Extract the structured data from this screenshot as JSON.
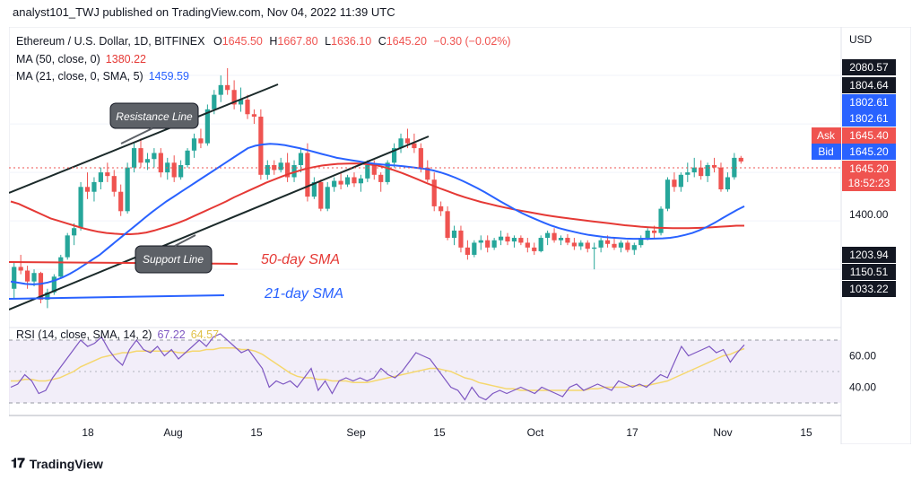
{
  "header": {
    "published_by": "analyst101_TWJ published on TradingView.com, Nov 04, 2022 11:39 UTC"
  },
  "legend": {
    "symbol": "Ethereum / U.S. Dollar, 1D, BITFINEX",
    "o_label": "O",
    "o_value": "1645.50",
    "h_label": "H",
    "h_value": "1667.80",
    "l_label": "L",
    "l_value": "1636.10",
    "c_label": "C",
    "c_value": "1645.20",
    "change": "−0.30 (−0.02%)",
    "ma50": "MA (50, close, 0)",
    "ma50_value": "1380.22",
    "ma21": "MA (21, close, 0, SMA, 5)",
    "ma21_value": "1459.59",
    "rsi": "RSI (14, close, SMA, 14, 2)",
    "rsi_value": "67.22",
    "rsi_ma_value": "64.57"
  },
  "annotations": {
    "resistance": "Resistance Line",
    "support": "Support Line",
    "sma50": "50-day SMA",
    "sma21": "21-day SMA"
  },
  "axis": {
    "currency": "USD",
    "ask_label": "Ask",
    "ask_value": "1645.40",
    "bid_label": "Bid",
    "bid_value": "1645.20",
    "price_tag": "1645.20",
    "countdown": "18:52:23",
    "badges": [
      "2080.57",
      "1804.64",
      "1802.61",
      "1802.61",
      "1203.94",
      "1150.51",
      "1033.22"
    ],
    "tick_1400": "1400.00",
    "rsi_ticks": [
      "60.00",
      "40.00"
    ],
    "x_ticks": [
      "18",
      "Aug",
      "15",
      "Sep",
      "15",
      "Oct",
      "17",
      "Nov",
      "15"
    ]
  },
  "colors": {
    "up": "#26a69a",
    "down": "#ef5350",
    "ma50": "#e53935",
    "ma21": "#2962ff",
    "rsi": "#7e57c2",
    "rsi_ma": "#f5d76e",
    "dark_badge": "#131722",
    "blue_badge": "#2962ff"
  },
  "footer": {
    "brand": "TradingView"
  },
  "chart_data": {
    "type": "candlestick",
    "y_unit": "USD",
    "ylim": [
      960,
      2200
    ],
    "candles": [
      {
        "o": 1120,
        "h": 1230,
        "l": 1080,
        "c": 1210
      },
      {
        "o": 1210,
        "h": 1260,
        "l": 1180,
        "c": 1195
      },
      {
        "o": 1195,
        "h": 1215,
        "l": 1120,
        "c": 1150
      },
      {
        "o": 1150,
        "h": 1200,
        "l": 1130,
        "c": 1185
      },
      {
        "o": 1185,
        "h": 1190,
        "l": 1060,
        "c": 1075
      },
      {
        "o": 1075,
        "h": 1120,
        "l": 1040,
        "c": 1105
      },
      {
        "o": 1105,
        "h": 1180,
        "l": 1095,
        "c": 1170
      },
      {
        "o": 1170,
        "h": 1260,
        "l": 1160,
        "c": 1250
      },
      {
        "o": 1250,
        "h": 1350,
        "l": 1240,
        "c": 1340
      },
      {
        "o": 1340,
        "h": 1390,
        "l": 1300,
        "c": 1370
      },
      {
        "o": 1370,
        "h": 1560,
        "l": 1360,
        "c": 1540
      },
      {
        "o": 1540,
        "h": 1600,
        "l": 1490,
        "c": 1520
      },
      {
        "o": 1520,
        "h": 1580,
        "l": 1480,
        "c": 1560
      },
      {
        "o": 1560,
        "h": 1620,
        "l": 1530,
        "c": 1600
      },
      {
        "o": 1600,
        "h": 1640,
        "l": 1560,
        "c": 1585
      },
      {
        "o": 1585,
        "h": 1610,
        "l": 1500,
        "c": 1520
      },
      {
        "o": 1520,
        "h": 1550,
        "l": 1420,
        "c": 1440
      },
      {
        "o": 1440,
        "h": 1640,
        "l": 1430,
        "c": 1620
      },
      {
        "o": 1620,
        "h": 1720,
        "l": 1600,
        "c": 1700
      },
      {
        "o": 1700,
        "h": 1740,
        "l": 1620,
        "c": 1640
      },
      {
        "o": 1640,
        "h": 1680,
        "l": 1610,
        "c": 1655
      },
      {
        "o": 1655,
        "h": 1700,
        "l": 1620,
        "c": 1680
      },
      {
        "o": 1680,
        "h": 1700,
        "l": 1580,
        "c": 1600
      },
      {
        "o": 1600,
        "h": 1660,
        "l": 1570,
        "c": 1640
      },
      {
        "o": 1640,
        "h": 1670,
        "l": 1560,
        "c": 1580
      },
      {
        "o": 1580,
        "h": 1650,
        "l": 1570,
        "c": 1630
      },
      {
        "o": 1630,
        "h": 1700,
        "l": 1620,
        "c": 1690
      },
      {
        "o": 1690,
        "h": 1760,
        "l": 1660,
        "c": 1740
      },
      {
        "o": 1740,
        "h": 1780,
        "l": 1700,
        "c": 1720
      },
      {
        "o": 1720,
        "h": 1880,
        "l": 1710,
        "c": 1860
      },
      {
        "o": 1860,
        "h": 1940,
        "l": 1840,
        "c": 1920
      },
      {
        "o": 1920,
        "h": 2000,
        "l": 1890,
        "c": 1960
      },
      {
        "o": 1960,
        "h": 2030,
        "l": 1920,
        "c": 1940
      },
      {
        "o": 1940,
        "h": 1980,
        "l": 1860,
        "c": 1880
      },
      {
        "o": 1880,
        "h": 1950,
        "l": 1850,
        "c": 1900
      },
      {
        "o": 1900,
        "h": 1920,
        "l": 1820,
        "c": 1840
      },
      {
        "o": 1840,
        "h": 1860,
        "l": 1800,
        "c": 1830
      },
      {
        "o": 1830,
        "h": 1860,
        "l": 1570,
        "c": 1590
      },
      {
        "o": 1590,
        "h": 1650,
        "l": 1570,
        "c": 1630
      },
      {
        "o": 1630,
        "h": 1650,
        "l": 1590,
        "c": 1610
      },
      {
        "o": 1610,
        "h": 1660,
        "l": 1600,
        "c": 1640
      },
      {
        "o": 1640,
        "h": 1680,
        "l": 1560,
        "c": 1580
      },
      {
        "o": 1580,
        "h": 1650,
        "l": 1560,
        "c": 1630
      },
      {
        "o": 1630,
        "h": 1700,
        "l": 1600,
        "c": 1680
      },
      {
        "o": 1680,
        "h": 1720,
        "l": 1480,
        "c": 1500
      },
      {
        "o": 1500,
        "h": 1580,
        "l": 1490,
        "c": 1560
      },
      {
        "o": 1560,
        "h": 1570,
        "l": 1440,
        "c": 1450
      },
      {
        "o": 1450,
        "h": 1560,
        "l": 1440,
        "c": 1540
      },
      {
        "o": 1540,
        "h": 1580,
        "l": 1520,
        "c": 1565
      },
      {
        "o": 1565,
        "h": 1600,
        "l": 1530,
        "c": 1550
      },
      {
        "o": 1550,
        "h": 1590,
        "l": 1540,
        "c": 1580
      },
      {
        "o": 1580,
        "h": 1600,
        "l": 1540,
        "c": 1555
      },
      {
        "o": 1555,
        "h": 1590,
        "l": 1520,
        "c": 1575
      },
      {
        "o": 1575,
        "h": 1650,
        "l": 1560,
        "c": 1630
      },
      {
        "o": 1630,
        "h": 1650,
        "l": 1570,
        "c": 1590
      },
      {
        "o": 1590,
        "h": 1600,
        "l": 1520,
        "c": 1560
      },
      {
        "o": 1560,
        "h": 1650,
        "l": 1550,
        "c": 1640
      },
      {
        "o": 1640,
        "h": 1720,
        "l": 1620,
        "c": 1700
      },
      {
        "o": 1700,
        "h": 1760,
        "l": 1680,
        "c": 1740
      },
      {
        "o": 1740,
        "h": 1780,
        "l": 1700,
        "c": 1720
      },
      {
        "o": 1720,
        "h": 1760,
        "l": 1680,
        "c": 1700
      },
      {
        "o": 1700,
        "h": 1720,
        "l": 1600,
        "c": 1620
      },
      {
        "o": 1620,
        "h": 1650,
        "l": 1560,
        "c": 1570
      },
      {
        "o": 1570,
        "h": 1600,
        "l": 1440,
        "c": 1460
      },
      {
        "o": 1460,
        "h": 1480,
        "l": 1420,
        "c": 1440
      },
      {
        "o": 1440,
        "h": 1460,
        "l": 1320,
        "c": 1330
      },
      {
        "o": 1330,
        "h": 1380,
        "l": 1300,
        "c": 1360
      },
      {
        "o": 1360,
        "h": 1380,
        "l": 1270,
        "c": 1290
      },
      {
        "o": 1290,
        "h": 1320,
        "l": 1240,
        "c": 1260
      },
      {
        "o": 1260,
        "h": 1320,
        "l": 1250,
        "c": 1310
      },
      {
        "o": 1310,
        "h": 1340,
        "l": 1280,
        "c": 1320
      },
      {
        "o": 1320,
        "h": 1340,
        "l": 1270,
        "c": 1290
      },
      {
        "o": 1290,
        "h": 1330,
        "l": 1280,
        "c": 1320
      },
      {
        "o": 1320,
        "h": 1360,
        "l": 1300,
        "c": 1335
      },
      {
        "o": 1335,
        "h": 1350,
        "l": 1300,
        "c": 1315
      },
      {
        "o": 1315,
        "h": 1340,
        "l": 1290,
        "c": 1330
      },
      {
        "o": 1330,
        "h": 1340,
        "l": 1300,
        "c": 1310
      },
      {
        "o": 1310,
        "h": 1330,
        "l": 1270,
        "c": 1290
      },
      {
        "o": 1290,
        "h": 1310,
        "l": 1260,
        "c": 1275
      },
      {
        "o": 1275,
        "h": 1340,
        "l": 1270,
        "c": 1330
      },
      {
        "o": 1330,
        "h": 1360,
        "l": 1300,
        "c": 1350
      },
      {
        "o": 1350,
        "h": 1370,
        "l": 1310,
        "c": 1320
      },
      {
        "o": 1320,
        "h": 1340,
        "l": 1300,
        "c": 1330
      },
      {
        "o": 1330,
        "h": 1345,
        "l": 1300,
        "c": 1310
      },
      {
        "o": 1310,
        "h": 1330,
        "l": 1280,
        "c": 1295
      },
      {
        "o": 1295,
        "h": 1320,
        "l": 1280,
        "c": 1310
      },
      {
        "o": 1310,
        "h": 1320,
        "l": 1270,
        "c": 1285
      },
      {
        "o": 1285,
        "h": 1310,
        "l": 1200,
        "c": 1290
      },
      {
        "o": 1290,
        "h": 1330,
        "l": 1270,
        "c": 1320
      },
      {
        "o": 1320,
        "h": 1340,
        "l": 1290,
        "c": 1305
      },
      {
        "o": 1305,
        "h": 1330,
        "l": 1280,
        "c": 1290
      },
      {
        "o": 1290,
        "h": 1320,
        "l": 1270,
        "c": 1310
      },
      {
        "o": 1310,
        "h": 1320,
        "l": 1270,
        "c": 1280
      },
      {
        "o": 1280,
        "h": 1310,
        "l": 1260,
        "c": 1300
      },
      {
        "o": 1300,
        "h": 1340,
        "l": 1290,
        "c": 1330
      },
      {
        "o": 1330,
        "h": 1370,
        "l": 1320,
        "c": 1360
      },
      {
        "o": 1360,
        "h": 1380,
        "l": 1330,
        "c": 1350
      },
      {
        "o": 1350,
        "h": 1460,
        "l": 1340,
        "c": 1450
      },
      {
        "o": 1450,
        "h": 1580,
        "l": 1440,
        "c": 1570
      },
      {
        "o": 1570,
        "h": 1600,
        "l": 1520,
        "c": 1540
      },
      {
        "o": 1540,
        "h": 1600,
        "l": 1520,
        "c": 1590
      },
      {
        "o": 1590,
        "h": 1640,
        "l": 1560,
        "c": 1600
      },
      {
        "o": 1600,
        "h": 1660,
        "l": 1580,
        "c": 1620
      },
      {
        "o": 1620,
        "h": 1650,
        "l": 1570,
        "c": 1585
      },
      {
        "o": 1585,
        "h": 1640,
        "l": 1560,
        "c": 1630
      },
      {
        "o": 1630,
        "h": 1660,
        "l": 1600,
        "c": 1620
      },
      {
        "o": 1620,
        "h": 1640,
        "l": 1520,
        "c": 1530
      },
      {
        "o": 1530,
        "h": 1600,
        "l": 1520,
        "c": 1580
      },
      {
        "o": 1580,
        "h": 1680,
        "l": 1570,
        "c": 1660
      },
      {
        "o": 1660,
        "h": 1668,
        "l": 1636,
        "c": 1645
      }
    ],
    "ma50": [
      1480,
      1470,
      1455,
      1440,
      1425,
      1410,
      1400,
      1390,
      1380,
      1370,
      1362,
      1355,
      1350,
      1347,
      1345,
      1345,
      1347,
      1352,
      1360,
      1370,
      1380,
      1392,
      1405,
      1420,
      1435,
      1450,
      1465,
      1480,
      1497,
      1512,
      1527,
      1542,
      1557,
      1570,
      1583,
      1595,
      1605,
      1615,
      1622,
      1628,
      1632,
      1635,
      1636,
      1637,
      1636,
      1633,
      1628,
      1620,
      1610,
      1598,
      1585,
      1572,
      1558,
      1545,
      1532,
      1520,
      1508,
      1497,
      1487,
      1478,
      1470,
      1462,
      1455,
      1448,
      1442,
      1436,
      1430,
      1424,
      1419,
      1414,
      1410,
      1406,
      1402,
      1398,
      1394,
      1390,
      1386,
      1382,
      1379,
      1376,
      1374,
      1372,
      1371,
      1370,
      1370,
      1370,
      1371,
      1372,
      1374,
      1376,
      1378,
      1380,
      1380
    ],
    "ma21": [
      1150,
      1145,
      1140,
      1138,
      1140,
      1146,
      1155,
      1167,
      1182,
      1200,
      1220,
      1240,
      1260,
      1285,
      1310,
      1335,
      1360,
      1385,
      1410,
      1435,
      1458,
      1480,
      1500,
      1520,
      1540,
      1560,
      1580,
      1600,
      1620,
      1640,
      1660,
      1680,
      1700,
      1710,
      1715,
      1718,
      1716,
      1712,
      1706,
      1700,
      1692,
      1684,
      1676,
      1668,
      1660,
      1655,
      1650,
      1645,
      1640,
      1636,
      1633,
      1630,
      1628,
      1625,
      1622,
      1618,
      1614,
      1608,
      1600,
      1590,
      1578,
      1565,
      1550,
      1535,
      1518,
      1500,
      1482,
      1465,
      1448,
      1432,
      1418,
      1405,
      1392,
      1380,
      1370,
      1362,
      1355,
      1348,
      1342,
      1338,
      1334,
      1331,
      1329,
      1327,
      1326,
      1326,
      1326,
      1327,
      1328,
      1330,
      1335,
      1342,
      1350,
      1362,
      1376,
      1392,
      1410,
      1428,
      1445,
      1460
    ],
    "rsi": [
      40,
      42,
      48,
      44,
      36,
      38,
      46,
      52,
      58,
      64,
      70,
      66,
      68,
      72,
      64,
      58,
      54,
      64,
      70,
      64,
      62,
      66,
      60,
      64,
      58,
      62,
      66,
      70,
      66,
      72,
      74,
      70,
      66,
      62,
      64,
      58,
      52,
      40,
      44,
      42,
      44,
      40,
      46,
      52,
      38,
      44,
      36,
      44,
      46,
      44,
      46,
      44,
      46,
      52,
      48,
      46,
      50,
      56,
      62,
      60,
      58,
      52,
      46,
      40,
      38,
      32,
      40,
      34,
      32,
      36,
      38,
      36,
      38,
      40,
      38,
      36,
      40,
      38,
      36,
      34,
      40,
      42,
      38,
      40,
      42,
      40,
      38,
      44,
      42,
      40,
      42,
      40,
      44,
      48,
      46,
      56,
      66,
      60,
      62,
      64,
      66,
      62,
      64,
      56,
      62,
      67
    ],
    "rsi_ma": [
      44,
      44,
      45,
      45,
      44,
      44,
      45,
      46,
      48,
      50,
      53,
      55,
      57,
      59,
      60,
      61,
      62,
      62,
      63,
      63,
      63,
      63,
      63,
      63,
      62,
      62,
      63,
      63,
      64,
      64,
      65,
      65,
      65,
      64,
      64,
      63,
      61,
      58,
      55,
      52,
      49,
      47,
      46,
      46,
      45,
      45,
      44,
      44,
      44,
      43,
      43,
      43,
      44,
      45,
      46,
      47,
      48,
      49,
      50,
      51,
      52,
      52,
      51,
      50,
      48,
      46,
      45,
      43,
      42,
      41,
      40,
      39,
      39,
      38,
      38,
      38,
      38,
      38,
      38,
      38,
      38,
      38,
      38,
      39,
      39,
      40,
      40,
      40,
      40,
      41,
      41,
      41,
      42,
      43,
      44,
      46,
      48,
      50,
      52,
      54,
      56,
      58,
      60,
      61,
      63,
      64.57
    ],
    "rsi_ylim": [
      22,
      78
    ],
    "rsi_levels": [
      70,
      30
    ]
  }
}
